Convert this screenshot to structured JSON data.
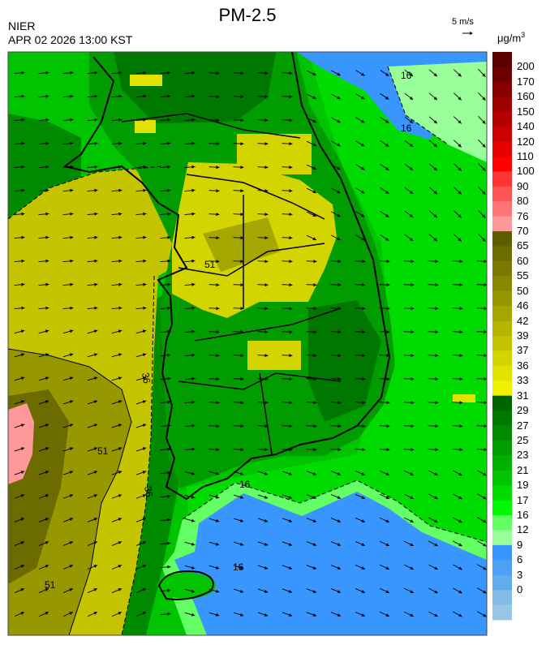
{
  "header": {
    "title": "PM-2.5",
    "agency": "NIER",
    "timestamp": "APR 02 2026 13:00 KST",
    "wind_scale_label": "5 m/s",
    "unit_base": "μg/m",
    "unit_exp": "3"
  },
  "colorbar": {
    "labels": [
      "200",
      "170",
      "160",
      "150",
      "140",
      "120",
      "110",
      "100",
      "90",
      "80",
      "76",
      "70",
      "65",
      "60",
      "55",
      "50",
      "46",
      "42",
      "39",
      "37",
      "36",
      "33",
      "31",
      "29",
      "27",
      "25",
      "23",
      "21",
      "19",
      "17",
      "16",
      "12",
      "9",
      "6",
      "3",
      "0"
    ],
    "colors": [
      "#5a0000",
      "#6e0000",
      "#860000",
      "#9e0000",
      "#b40000",
      "#cc0000",
      "#e60000",
      "#ff0000",
      "#ff3535",
      "#ff5454",
      "#ff7474",
      "#ff9898",
      "#5c5c00",
      "#6b6b00",
      "#7a7a00",
      "#888800",
      "#979700",
      "#a6a600",
      "#b5b500",
      "#c4c400",
      "#d4d400",
      "#e2e200",
      "#f0f000",
      "#006400",
      "#007800",
      "#008a00",
      "#009c00",
      "#00b000",
      "#00c400",
      "#00dc00",
      "#00f800",
      "#64ff64",
      "#99ff99",
      "#3a96ff",
      "#4ea0f4",
      "#62acee",
      "#84bce8",
      "#96c8e6"
    ]
  },
  "map": {
    "contour_labels": [
      {
        "text": "36"
      },
      {
        "text": "51"
      },
      {
        "text": "51"
      },
      {
        "text": "51"
      },
      {
        "text": "36"
      },
      {
        "text": "16"
      },
      {
        "text": "16"
      },
      {
        "text": "16"
      },
      {
        "text": "16"
      }
    ]
  }
}
